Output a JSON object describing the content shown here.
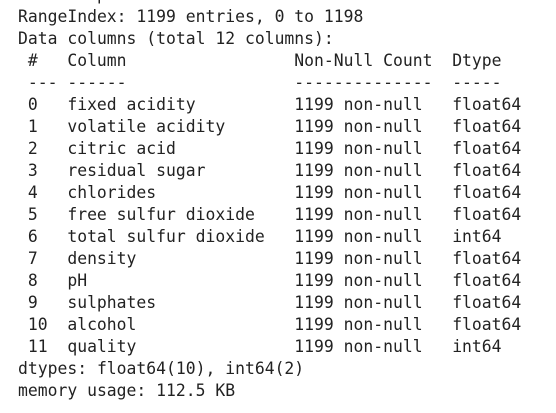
{
  "header_lines": [
    "<class 'pandas.core.frame.DataFrame'>",
    "RangeIndex: 1199 entries, 0 to 1198",
    "Data columns (total 12 columns):"
  ],
  "table": {
    "columns": [
      "#",
      "Column",
      "Non-Null Count",
      "Dtype"
    ],
    "separators": [
      "---",
      "------",
      "--------------",
      "-----"
    ],
    "rows": [
      [
        "0",
        "fixed acidity",
        "1199 non-null",
        "float64"
      ],
      [
        "1",
        "volatile acidity",
        "1199 non-null",
        "float64"
      ],
      [
        "2",
        "citric acid",
        "1199 non-null",
        "float64"
      ],
      [
        "3",
        "residual sugar",
        "1199 non-null",
        "float64"
      ],
      [
        "4",
        "chlorides",
        "1199 non-null",
        "float64"
      ],
      [
        "5",
        "free sulfur dioxide",
        "1199 non-null",
        "float64"
      ],
      [
        "6",
        "total sulfur dioxide",
        "1199 non-null",
        "int64"
      ],
      [
        "7",
        "density",
        "1199 non-null",
        "float64"
      ],
      [
        "8",
        "pH",
        "1199 non-null",
        "float64"
      ],
      [
        "9",
        "sulphates",
        "1199 non-null",
        "float64"
      ],
      [
        "10",
        "alcohol",
        "1199 non-null",
        "float64"
      ],
      [
        "11",
        "quality",
        "1199 non-null",
        "int64"
      ]
    ]
  },
  "footer_lines": [
    "dtypes: float64(10), int64(2)",
    "memory usage: 112.5 KB"
  ]
}
